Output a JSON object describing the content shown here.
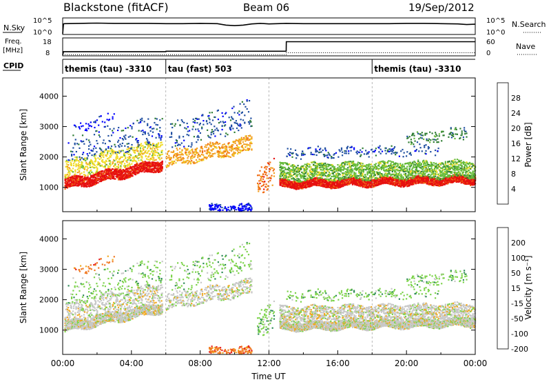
{
  "header": {
    "title": "Blackstone (fitACF)",
    "beam": "Beam 06",
    "date": "19/Sep/2012"
  },
  "chart_data": [
    {
      "type": "line",
      "name": "noise-panel",
      "ylabel_left": "N.Sky",
      "ylabel_right": "N.Search",
      "yticks": [
        "10^5",
        "10^0"
      ],
      "ylim": [
        0,
        5
      ],
      "xlim": [
        0,
        24
      ],
      "series": [
        {
          "style": "solid",
          "x": [
            0,
            0.05,
            0.1,
            1,
            2,
            3,
            4,
            5,
            6,
            7,
            8,
            9,
            9.5,
            10,
            10.5,
            11,
            11.5,
            12,
            13,
            14,
            15,
            16,
            17,
            18,
            19,
            20,
            21,
            22,
            23,
            23.5,
            24
          ],
          "y": [
            0,
            3.4,
            3.5,
            3.6,
            3.7,
            3.6,
            3.6,
            3.6,
            3.5,
            3.5,
            3.6,
            3.5,
            3.0,
            2.8,
            3.0,
            3.4,
            3.6,
            3.4,
            3.6,
            3.5,
            3.5,
            3.5,
            3.5,
            3.5,
            3.5,
            3.6,
            3.6,
            3.5,
            3.4,
            3.2,
            3.3
          ]
        }
      ]
    },
    {
      "type": "line",
      "name": "frequency-panel",
      "ylabel_left": "Freq.",
      "ylabel_left_unit": "[MHz]",
      "ylabel_right": "Nave",
      "yticks_left": [
        "18",
        "8"
      ],
      "yticks_right": [
        "60",
        "0"
      ],
      "ylim": [
        8,
        18
      ],
      "xlim": [
        0,
        24
      ],
      "series": [
        {
          "style": "solid",
          "x": [
            0,
            0.05,
            6,
            6.01,
            13,
            13.01,
            24
          ],
          "y": [
            8,
            10.2,
            10.2,
            10.5,
            10.5,
            16.5,
            16.5
          ]
        },
        {
          "style": "dotted",
          "x": [
            0,
            6,
            6,
            13,
            13,
            24
          ],
          "y": [
            8.3,
            8.3,
            8.3,
            8.3,
            9.5,
            9.5
          ]
        }
      ]
    },
    {
      "type": "table",
      "name": "cpid-strip",
      "label": "CPID",
      "segments": [
        {
          "start": 0,
          "end": 6,
          "text": "themis (tau) -3310"
        },
        {
          "start": 6,
          "end": 18,
          "text": "tau (fast) 503"
        },
        {
          "start": 18,
          "end": 24,
          "text": "themis (tau) -3310"
        }
      ]
    },
    {
      "type": "heatmap",
      "name": "power",
      "ylabel": "Slant Range [km]",
      "yticks": [
        1000,
        2000,
        3000,
        4000
      ],
      "ylim": [
        200,
        4600
      ],
      "xlim": [
        0,
        24
      ],
      "colorbar": {
        "label": "Power [dB]",
        "ticks": [
          "28",
          "24",
          "20",
          "16",
          "12",
          "8",
          "4"
        ]
      },
      "grid": "vertical dashed at 06:00 12:00 18:00"
    },
    {
      "type": "heatmap",
      "name": "velocity",
      "ylabel": "Slant Range [km]",
      "yticks": [
        1000,
        2000,
        3000,
        4000
      ],
      "ylim": [
        200,
        4600
      ],
      "xlim": [
        0,
        24
      ],
      "xlabel": "Time UT",
      "xticks": [
        "00:00",
        "04:00",
        "08:00",
        "12:00",
        "16:00",
        "20:00",
        "00:00"
      ],
      "colorbar": {
        "label": "Velocity [m s⁻¹]",
        "ticks": [
          "200",
          "100",
          "50",
          "15",
          "-15",
          "-50",
          "-100",
          "-200"
        ]
      }
    }
  ],
  "colors": {
    "power_scale": [
      "#0000ff",
      "#1f4ea0",
      "#2e7d32",
      "#66bb3a",
      "#f0dc28",
      "#f2a020",
      "#f06a10",
      "#e61010"
    ],
    "velocity_scale": [
      "#1f3aa8",
      "#2a6fb8",
      "#2e8b57",
      "#7cd34a",
      "#c8c8c8",
      "#f0a820",
      "#f07820",
      "#e82020"
    ]
  }
}
